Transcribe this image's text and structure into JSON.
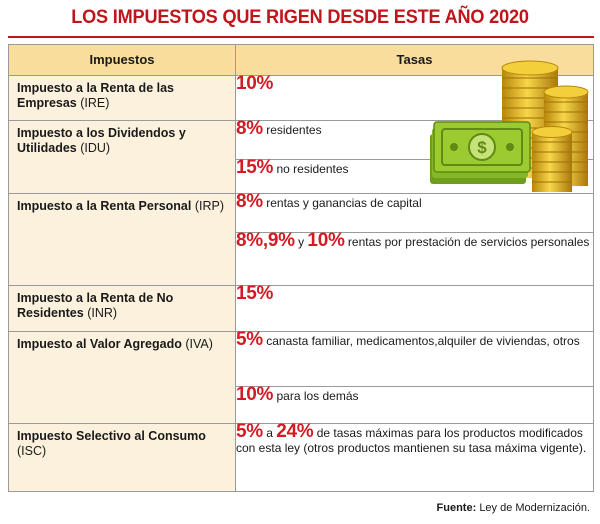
{
  "title": "LOS IMPUESTOS QUE RIGEN DESDE ESTE AÑO 2020",
  "table": {
    "headers": {
      "tax": "Impuestos",
      "rates": "Tasas"
    },
    "rows": [
      {
        "name": "Impuesto a la Renta de las Empresas",
        "abbr": "(IRE)",
        "rates": [
          {
            "pct": "10%",
            "desc": ""
          }
        ]
      },
      {
        "name": "Impuesto a los Dividendos y Utilidades",
        "abbr": "(IDU)",
        "rates": [
          {
            "pct": "8%",
            "desc": "residentes"
          },
          {
            "pct": "15%",
            "desc": "no residentes"
          }
        ]
      },
      {
        "name": "Impuesto a la Renta Personal",
        "abbr": "(IRP)",
        "rates": [
          {
            "pct": "8%",
            "desc": "rentas y ganancias de capital"
          },
          {
            "pct_a": "8%",
            "pct_b": "9%",
            "joiner": "y",
            "pct_c": "10%",
            "desc": "rentas por prestación de servicios personales"
          }
        ]
      },
      {
        "name": "Impuesto a la Renta de No Residentes",
        "abbr": "(INR)",
        "rates": [
          {
            "pct": "15%",
            "desc": ""
          }
        ]
      },
      {
        "name": "Impuesto al Valor Agregado",
        "abbr": "(IVA)",
        "rates": [
          {
            "pct": "5%",
            "desc": "canasta familiar, medicamentos,alquiler de viviendas, otros"
          },
          {
            "pct": "10%",
            "desc": "para los demás"
          }
        ]
      },
      {
        "name": "Impuesto Selectivo al Consumo",
        "abbr": "(ISC)",
        "rates": [
          {
            "pct_a": "5%",
            "joiner": "a",
            "pct_b": "24%",
            "desc": "de tasas máximas para los productos modificados con esta ley (otros productos mantienen su tasa máxima vigente)."
          }
        ]
      }
    ]
  },
  "source": {
    "label": "Fuente:",
    "text": "Ley de Modernización."
  },
  "colors": {
    "title": "#c0151b",
    "percent": "#d41a23",
    "header_bg": "#f8dd9c",
    "name_col_bg": "#fbf1dd"
  },
  "illustration": {
    "icon": "money-and-coins-icon"
  }
}
